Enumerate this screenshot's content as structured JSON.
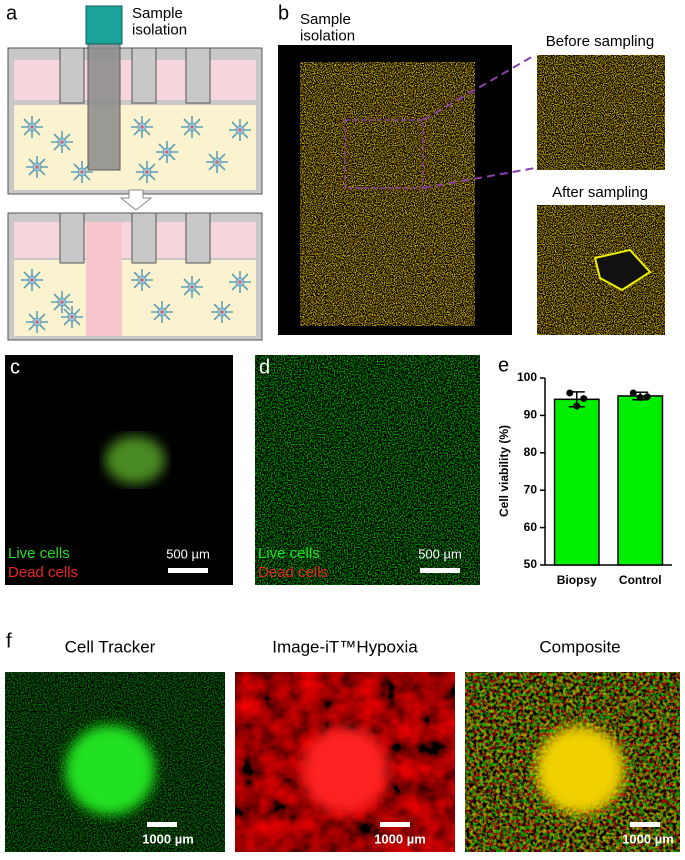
{
  "panel_labels": [
    "a",
    "b",
    "c",
    "d",
    "e",
    "f"
  ],
  "panel_a": {
    "caption": "Sample\nisolation"
  },
  "panel_b": {
    "caption": "Sample\nisolation",
    "before": "Before sampling",
    "after": "After sampling"
  },
  "panel_c": {
    "live": "Live cells",
    "dead": "Dead cells",
    "scale": "500 µm"
  },
  "panel_d": {
    "live": "Live cells",
    "dead": "Dead cells",
    "scale": "500 µm"
  },
  "chart_data": {
    "type": "bar",
    "ylabel": "Cell viability (%)",
    "categories": [
      "Biopsy",
      "Control"
    ],
    "values": [
      94.3,
      95.2
    ],
    "errors": [
      2.0,
      1.0
    ],
    "points": [
      [
        96,
        92.5,
        94.5
      ],
      [
        96,
        94.8,
        95
      ]
    ],
    "color": "#00ee00",
    "ylim": [
      50,
      100
    ],
    "yticks": [
      50,
      60,
      70,
      80,
      90,
      100
    ]
  },
  "panel_f": {
    "titles": [
      "Cell Tracker",
      "Image-iT™Hypoxia",
      "Composite"
    ],
    "scale": "1000 µm"
  }
}
